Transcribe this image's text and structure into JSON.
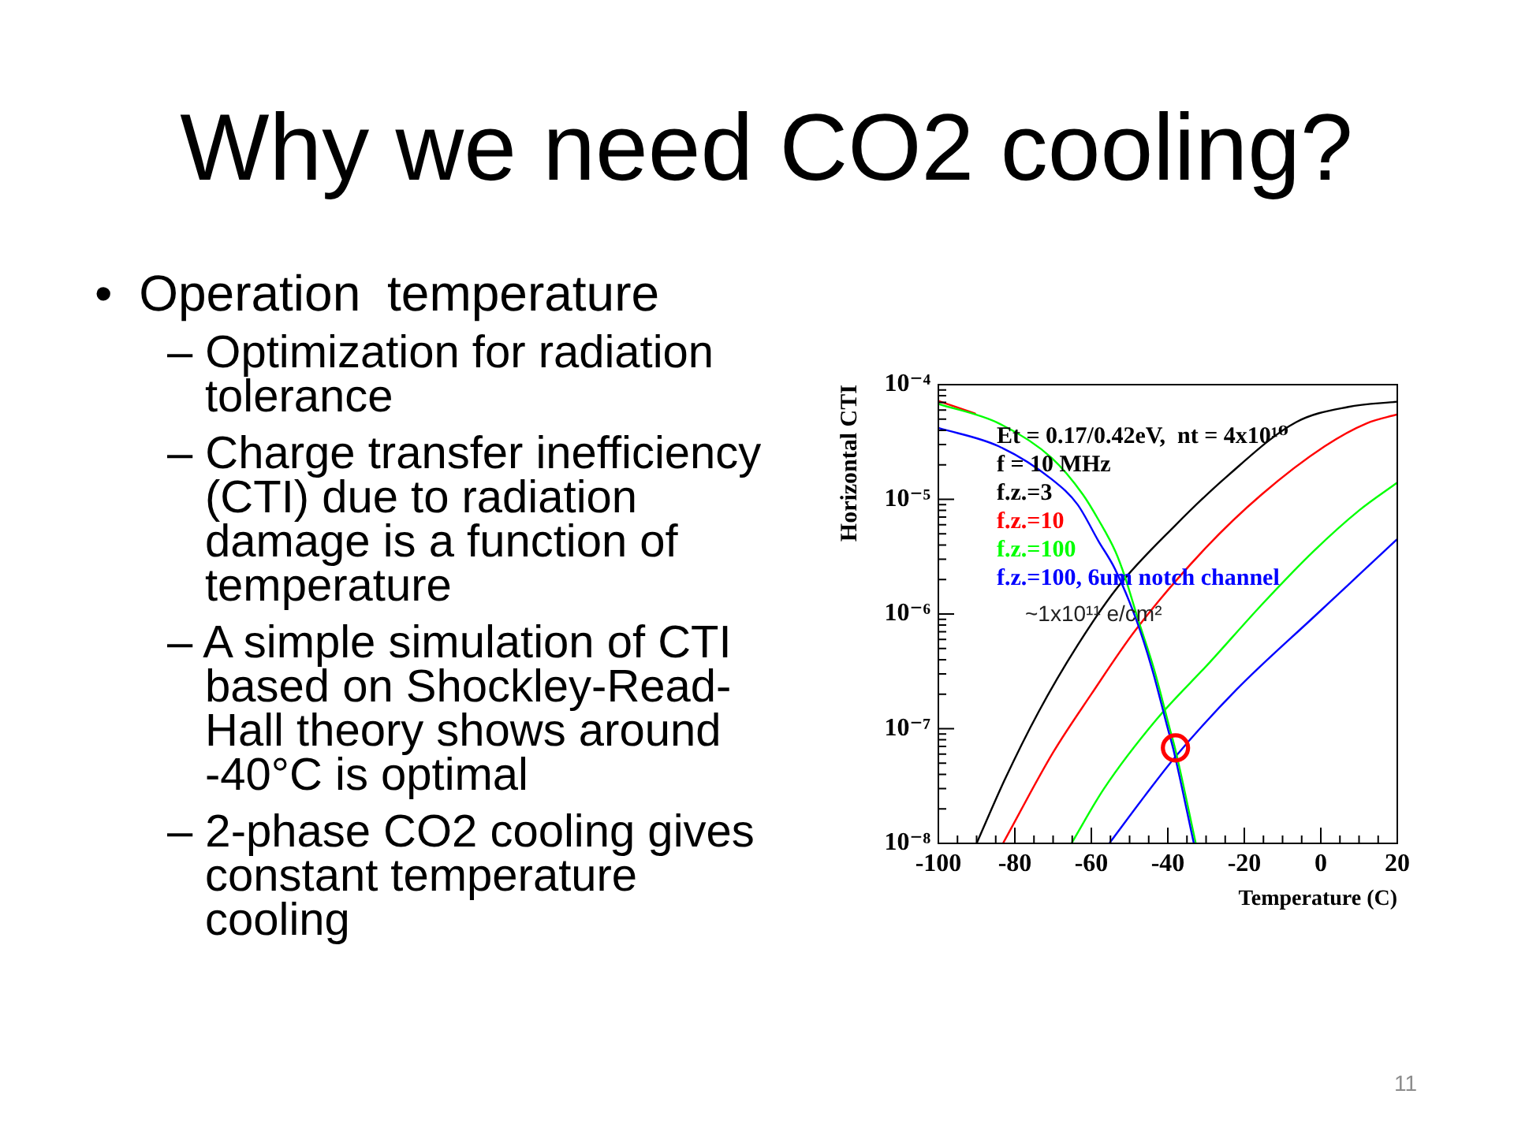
{
  "chart_data": {
    "type": "line",
    "title": "Why we need CO2 cooling?",
    "xlabel": "Temperature (C)",
    "ylabel": "Horizontal CTI",
    "log": "y",
    "legend": "top left",
    "xlim": [
      -100,
      20
    ],
    "xticks": [
      -100,
      {
        "value": -95,
        "label": null
      },
      {
        "value": -90,
        "label": null
      },
      {
        "value": -85,
        "label": null
      },
      -80,
      {
        "value": -75,
        "label": null
      },
      {
        "value": -70,
        "label": null
      },
      {
        "value": -65,
        "label": null
      },
      -60,
      {
        "value": -55,
        "label": null
      },
      {
        "value": -50,
        "label": null
      },
      {
        "value": -45,
        "label": null
      },
      -40,
      {
        "value": -35,
        "label": null
      },
      {
        "value": -30,
        "label": null
      },
      {
        "value": -25,
        "label": null
      },
      -20,
      {
        "value": -15,
        "label": null
      },
      {
        "value": -10,
        "label": null
      },
      {
        "value": -5,
        "label": null
      },
      0,
      {
        "value": 5,
        "label": null
      },
      {
        "value": 10,
        "label": null
      },
      {
        "value": 15,
        "label": null
      },
      20
    ],
    "ylim": [
      1e-08,
      0.0001
    ],
    "yticks": [
      {
        "value": 1e-08,
        "label": "10⁻⁸"
      },
      {
        "value": 2e-08,
        "label": null
      },
      {
        "value": 3e-08,
        "label": null
      },
      {
        "value": 4e-08,
        "label": null
      },
      {
        "value": 5e-08,
        "label": null
      },
      {
        "value": 6e-08,
        "label": null
      },
      {
        "value": 7e-08,
        "label": null
      },
      {
        "value": 8e-08,
        "label": null
      },
      {
        "value": 9e-08,
        "label": null
      },
      {
        "value": 1e-07,
        "label": "10⁻⁷"
      },
      {
        "value": 2e-07,
        "label": null
      },
      {
        "value": 3e-07,
        "label": null
      },
      {
        "value": 4e-07,
        "label": null
      },
      {
        "value": 5e-07,
        "label": null
      },
      {
        "value": 6e-07,
        "label": null
      },
      {
        "value": 7e-07,
        "label": null
      },
      {
        "value": 8e-07,
        "label": null
      },
      {
        "value": 9e-07,
        "label": null
      },
      {
        "value": 1e-06,
        "label": "10⁻⁶"
      },
      {
        "value": 2e-06,
        "label": null
      },
      {
        "value": 3e-06,
        "label": null
      },
      {
        "value": 4e-06,
        "label": null
      },
      {
        "value": 5e-06,
        "label": null
      },
      {
        "value": 6e-06,
        "label": null
      },
      {
        "value": 7e-06,
        "label": null
      },
      {
        "value": 8e-06,
        "label": null
      },
      {
        "value": 9e-06,
        "label": null
      },
      {
        "value": 1e-05,
        "label": "10⁻⁵"
      },
      {
        "value": 2e-05,
        "label": null
      },
      {
        "value": 3e-05,
        "label": null
      },
      {
        "value": 4e-05,
        "label": null
      },
      {
        "value": 5e-05,
        "label": null
      },
      {
        "value": 6e-05,
        "label": null
      },
      {
        "value": 7e-05,
        "label": null
      },
      {
        "value": 8e-05,
        "label": null
      },
      {
        "value": 9e-05,
        "label": null
      },
      {
        "value": 0.0001,
        "label": "10⁻⁴"
      }
    ],
    "series": [
      {
        "name": "f.z.=3",
        "color": "#000000",
        "x": [
          -90,
          -82.8,
          -73.8,
          -63.5,
          -53.2,
          -38.1,
          -24.4,
          -6.5,
          7.2,
          20
        ],
        "values": [
          1e-08,
          3.5e-08,
          1.4e-07,
          5.4e-07,
          1.7e-06,
          5.9e-06,
          1.6e-05,
          4.7e-05,
          6.4e-05,
          7.1e-05
        ]
      },
      {
        "name": "f.z.=10",
        "color": "#ff0000",
        "x": [
          -83.1,
          -70,
          -60,
          -48.5,
          -30,
          -15.5,
          1,
          12,
          20
        ],
        "values": [
          1e-08,
          6.2e-08,
          2e-07,
          7.2e-07,
          3.8e-06,
          1.1e-05,
          2.9e-05,
          4.6e-05,
          5.5e-05
        ]
      },
      {
        "name": "f.z.=100",
        "color": "#00ff00",
        "x": [
          -65.2,
          -56.7,
          -43,
          -29,
          -15.5,
          -2,
          10,
          20
        ],
        "values": [
          1e-08,
          3e-08,
          1.2e-07,
          3.8e-07,
          1.2e-06,
          3.5e-06,
          8e-06,
          1.4e-05
        ]
      },
      {
        "name": "f.z.=100, 6um notch channel",
        "color": "#0000ff",
        "x": [
          -55.3,
          -46,
          -38,
          -22,
          -1,
          10,
          20
        ],
        "values": [
          1e-08,
          2.6e-08,
          5.7e-08,
          2.2e-07,
          1e-06,
          2.2e-06,
          4.5e-06
        ]
      },
      {
        "color": "#ff0000",
        "x": [
          -100,
          -90.4
        ],
        "values": [
          7.2e-05,
          5.6e-05
        ]
      },
      {
        "color": "#00ff00",
        "x": [
          -100,
          -84.2,
          -70.4,
          -62.2,
          -58.1,
          -53.7,
          -51.2,
          -47.8,
          -43.6,
          -39.5,
          -38.1,
          -32.7
        ],
        "values": [
          6.8e-05,
          4.6e-05,
          2.3e-05,
          1.1e-05,
          6.6e-06,
          3.5e-06,
          2.1e-06,
          9e-07,
          3.3e-07,
          1e-07,
          6.7e-08,
          1e-08
        ]
      },
      {
        "color": "#0000ff",
        "x": [
          -100,
          -84.2,
          -70.4,
          -63.6,
          -58.1,
          -53.9,
          -48.3,
          -44.1,
          -40,
          -38.6,
          -33.2
        ],
        "values": [
          4.2e-05,
          2.9e-05,
          1.5e-05,
          9e-06,
          4.3e-06,
          2.5e-06,
          9e-07,
          3.3e-07,
          1e-07,
          6.7e-08,
          1e-08
        ]
      },
      {
        "type": "scatter",
        "color": "#ff0000",
        "marker": "circle",
        "x": [
          -38
        ],
        "values": [
          6.8e-08
        ]
      }
    ],
    "annotations": [
      "Et = 0.17/0.42eV,  nt = 4x10¹⁰",
      "f = 10 MHz",
      "~1x10¹¹ e/cm²",
      "• Operation temperature",
      "– Optimization for radiation tolerance",
      "– Charge transfer inefficiency (CTI) due to radiation damage is a function of temperature",
      "– A simple simulation of CTI based on Shockley-Read-Hall theory shows around -40°C is optimal",
      "– 2-phase CO2 cooling gives constant temperature cooling",
      "11"
    ]
  }
}
